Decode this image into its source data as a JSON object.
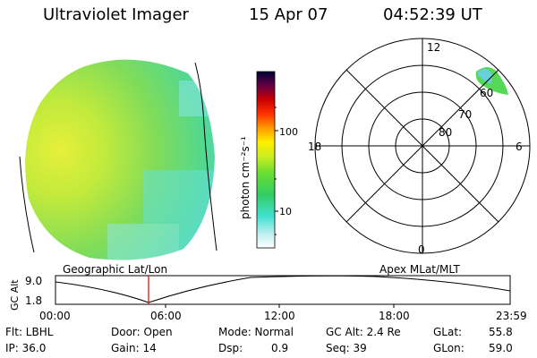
{
  "header": {
    "instrument": "Ultraviolet Imager",
    "date": "15 Apr 07",
    "time": "04:52:39 UT"
  },
  "colorbar": {
    "unit_label": "photon cm⁻²s⁻¹",
    "tick_100": "100",
    "tick_10": "10"
  },
  "polar": {
    "mlt_top": "12",
    "mlt_bottom": "0",
    "mlt_left": "18",
    "mlt_right": "6",
    "lat_60": "60",
    "lat_70": "70",
    "lat_80": "80"
  },
  "timeline": {
    "left_label": "Geographic Lat/Lon",
    "right_label": "Apex MLat/MLT",
    "y_axis_label": "GC Alt",
    "y_tick_top": "9.0",
    "y_tick_bottom": "1.8",
    "x_ticks": [
      "00:00",
      "06:00",
      "12:00",
      "18:00",
      "23:59"
    ],
    "marker_color": "#e00000"
  },
  "info": {
    "flt_label": "Flt: LBHL",
    "ip_label": "IP: 36.0",
    "door_label": "Door: Open",
    "gain_label": "Gain: 14",
    "mode_label": "Mode: Normal",
    "dsp_label": "Dsp:",
    "dsp_value": "0.9",
    "gcalt_label": "GC Alt: 2.4 Re",
    "seq_label": "Seq: 39",
    "glat_label": "GLat:",
    "glat_value": "55.8",
    "glon_label": "GLon:",
    "glon_value": "59.0"
  }
}
